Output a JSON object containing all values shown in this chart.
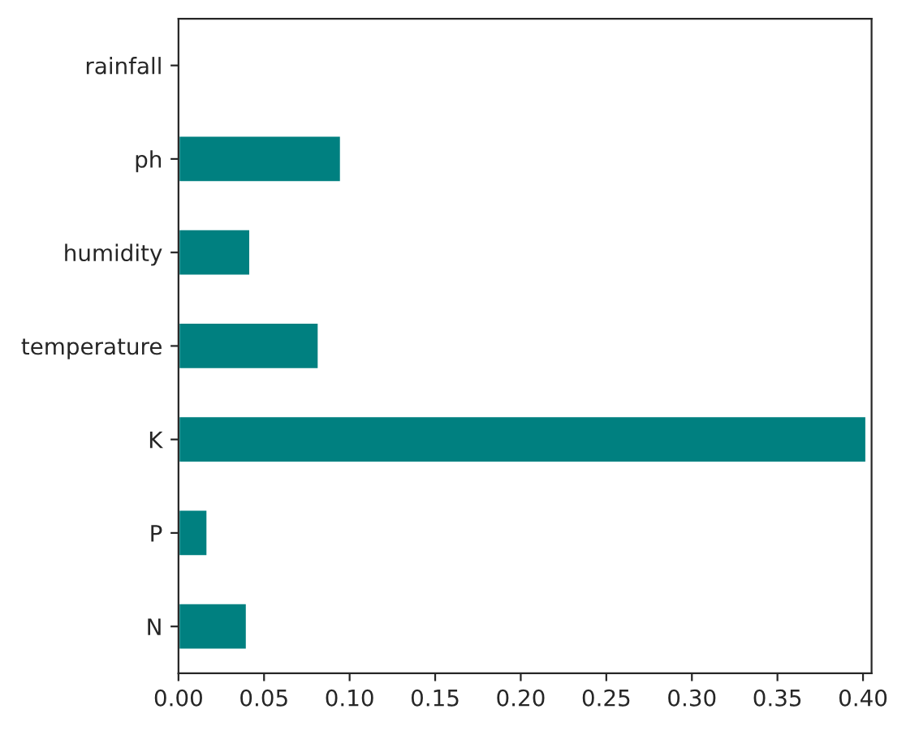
{
  "chart_data": {
    "type": "bar",
    "orientation": "horizontal",
    "categories": [
      "rainfall",
      "ph",
      "humidity",
      "temperature",
      "K",
      "P",
      "N"
    ],
    "values": [
      null,
      0.095,
      0.042,
      0.082,
      0.402,
      0.017,
      0.04
    ],
    "color": "#008080",
    "xlim": [
      0,
      0.405
    ],
    "xticks": [
      {
        "value": 0,
        "label": "0.00"
      },
      {
        "value": 0.05,
        "label": "0.05"
      },
      {
        "value": 0.1,
        "label": "0.10"
      },
      {
        "value": 0.15,
        "label": "0.15"
      },
      {
        "value": 0.2,
        "label": "0.20"
      },
      {
        "value": 0.25,
        "label": "0.25"
      },
      {
        "value": 0.3,
        "label": "0.30"
      },
      {
        "value": 0.35,
        "label": "0.35"
      },
      {
        "value": 0.4,
        "label": "0.40"
      }
    ],
    "grid": false,
    "legend": false
  }
}
